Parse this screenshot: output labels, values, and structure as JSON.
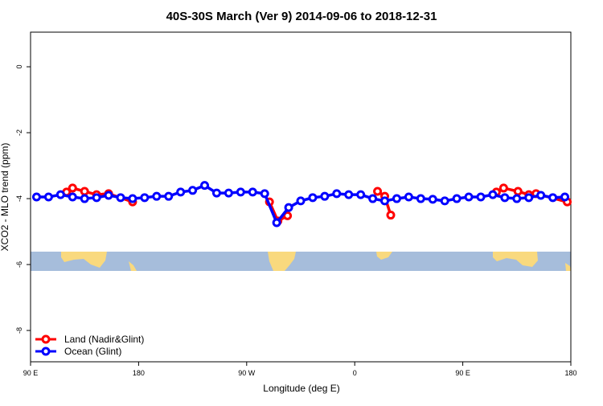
{
  "chart_data": {
    "type": "line",
    "title": "40S-30S March (Ver 9)   2014-09-06 to 2018-12-31",
    "xlabel": "Longitude (deg E)",
    "ylabel": "XCO2 - MLO trend (ppm)",
    "xlim": [
      90,
      540
    ],
    "ylim": [
      -8.95,
      1.05
    ],
    "xticks": [
      {
        "value": 90,
        "label": "90 E"
      },
      180,
      {
        "value": 270,
        "label": "90 W"
      },
      {
        "value": 360,
        "label": "0"
      },
      {
        "value": 450,
        "label": "90 E"
      },
      {
        "value": 540,
        "label": "180"
      }
    ],
    "yticks": [
      0,
      -2,
      -4,
      -6,
      -8
    ],
    "legend": "bottom-left",
    "series": [
      {
        "name": "Land (Nadir&Glint)",
        "color": "#ff0000",
        "x": [
          120,
          125,
          135,
          145,
          155,
          175,
          230,
          289,
          296,
          304,
          350,
          379,
          385,
          390,
          440,
          478,
          484,
          496,
          505,
          511,
          537
        ],
        "values": [
          -3.8,
          -3.68,
          -3.78,
          -3.88,
          -3.85,
          -4.1,
          null,
          -4.1,
          -4.68,
          -4.52,
          null,
          -3.78,
          -3.93,
          -4.5,
          null,
          -3.8,
          -3.68,
          -3.78,
          -3.88,
          -3.85,
          -4.1
        ]
      },
      {
        "name": "Ocean (Glint)",
        "color": "#0000ff",
        "x": [
          95,
          105,
          115,
          125,
          135,
          145,
          155,
          165,
          175,
          185,
          195,
          205,
          215,
          225,
          235,
          245,
          255,
          265,
          275,
          285,
          295,
          305,
          315,
          325,
          335,
          345,
          355,
          365,
          375,
          385,
          395,
          405,
          415,
          425,
          435,
          445,
          455,
          465,
          475,
          485,
          495,
          505,
          515,
          525,
          535
        ],
        "values": [
          -3.95,
          -3.95,
          -3.88,
          -3.95,
          -4.0,
          -3.97,
          -3.9,
          -3.97,
          -4.0,
          -3.97,
          -3.93,
          -3.93,
          -3.8,
          -3.75,
          -3.6,
          -3.83,
          -3.83,
          -3.8,
          -3.8,
          -3.85,
          -4.73,
          -4.27,
          -4.07,
          -3.97,
          -3.93,
          -3.85,
          -3.88,
          -3.88,
          -4.0,
          -4.07,
          -4.0,
          -3.95,
          -4.0,
          -4.02,
          -4.07,
          -4.0,
          -3.95,
          -3.95,
          -3.88,
          -3.97,
          -4.0,
          -3.97,
          -3.9,
          -3.97,
          -3.95
        ]
      }
    ]
  }
}
